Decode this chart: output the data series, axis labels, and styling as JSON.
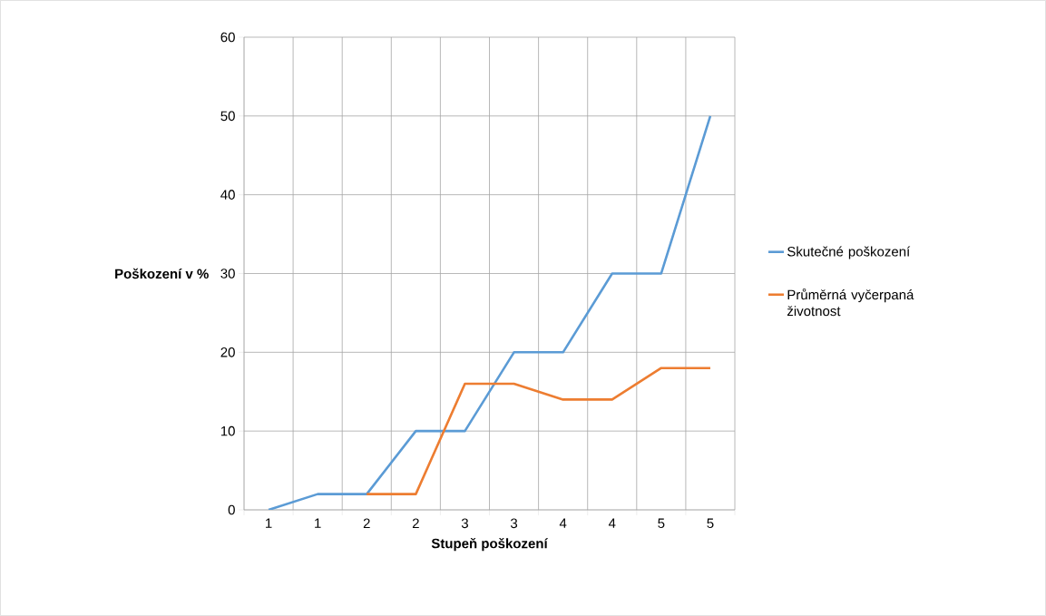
{
  "chart_data": {
    "type": "line",
    "xlabel": "Stupeň poškození",
    "ylabel": "Poškození v %",
    "categories": [
      "1",
      "1",
      "2",
      "2",
      "3",
      "3",
      "4",
      "4",
      "5",
      "5"
    ],
    "series": [
      {
        "name": "Skutečné poškození",
        "color": "#5b9bd5",
        "values": [
          0,
          2,
          2,
          10,
          10,
          20,
          20,
          30,
          30,
          50
        ]
      },
      {
        "name": "Průměrná vyčerpaná životnost",
        "color": "#ed7d31",
        "values": [
          null,
          null,
          2,
          2,
          16,
          16,
          14,
          14,
          18,
          18
        ]
      }
    ],
    "ylim": [
      0,
      60
    ],
    "yticks": [
      0,
      10,
      20,
      30,
      40,
      50,
      60
    ],
    "grid": true,
    "legend": "right",
    "marker": "none",
    "line_style": "solid"
  }
}
